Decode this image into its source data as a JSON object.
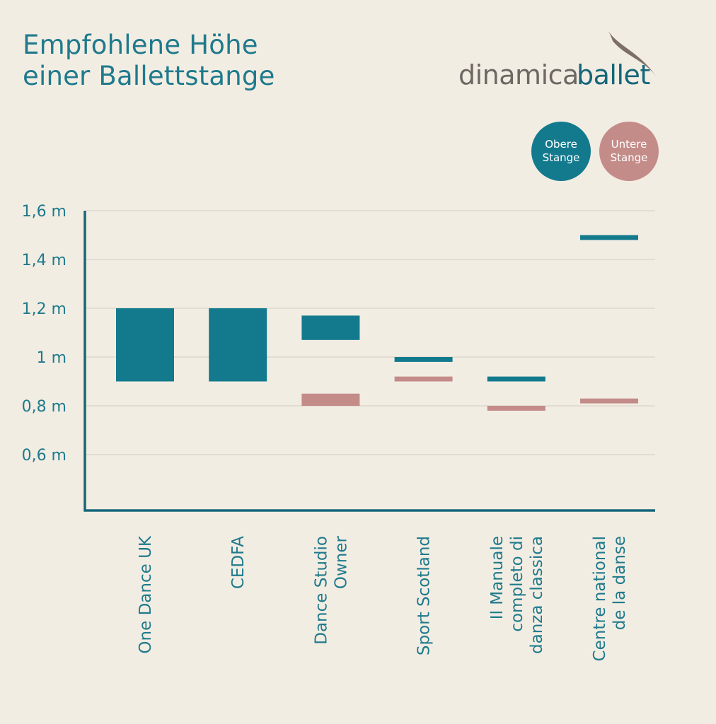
{
  "title": {
    "line1": "Empfohlene Höhe",
    "line2": "einer Ballettstange"
  },
  "logo": {
    "word1": "dinamica",
    "word2": "ballet"
  },
  "legend": [
    {
      "label": "Obere\nStange",
      "color": "#137a8e"
    },
    {
      "label": "Untere\nStange",
      "color": "#c48c89"
    }
  ],
  "chart_data": {
    "type": "bar",
    "subtype": "floating-range",
    "title": "Empfohlene Höhe einer Ballettstange",
    "xlabel": "",
    "ylabel": "",
    "ylim": [
      0.37,
      1.6
    ],
    "yticks": [
      {
        "value": 1.6,
        "label": "1,6 m"
      },
      {
        "value": 1.4,
        "label": "1,4 m"
      },
      {
        "value": 1.2,
        "label": "1,2 m"
      },
      {
        "value": 1.0,
        "label": "1 m"
      },
      {
        "value": 0.8,
        "label": "0,8 m"
      },
      {
        "value": 0.6,
        "label": "0,6 m"
      }
    ],
    "grid": true,
    "legend_position": "top-right",
    "categories": [
      "One Dance UK",
      "CEDFA",
      "Dance Studio Owner",
      "Sport Scotland",
      "Il Manuale completo di danza classica",
      "Centre national de la danse"
    ],
    "category_label_lines": [
      [
        "One Dance UK"
      ],
      [
        "CEDFA"
      ],
      [
        "Dance Studio",
        "Owner"
      ],
      [
        "Sport Scotland"
      ],
      [
        "Il Manuale",
        "completo di",
        "danza classica"
      ],
      [
        "Centre national",
        "de la danse"
      ]
    ],
    "series": [
      {
        "name": "Obere Stange",
        "color": "#137a8e",
        "ranges": [
          [
            0.9,
            1.2
          ],
          [
            0.9,
            1.2
          ],
          [
            1.07,
            1.17
          ],
          [
            0.98,
            1.0
          ],
          [
            0.9,
            0.92
          ],
          [
            1.48,
            1.5
          ]
        ]
      },
      {
        "name": "Untere Stange",
        "color": "#c48c89",
        "ranges": [
          null,
          null,
          [
            0.8,
            0.85
          ],
          [
            0.9,
            0.92
          ],
          [
            0.78,
            0.8
          ],
          [
            0.81,
            0.83
          ]
        ]
      }
    ]
  }
}
